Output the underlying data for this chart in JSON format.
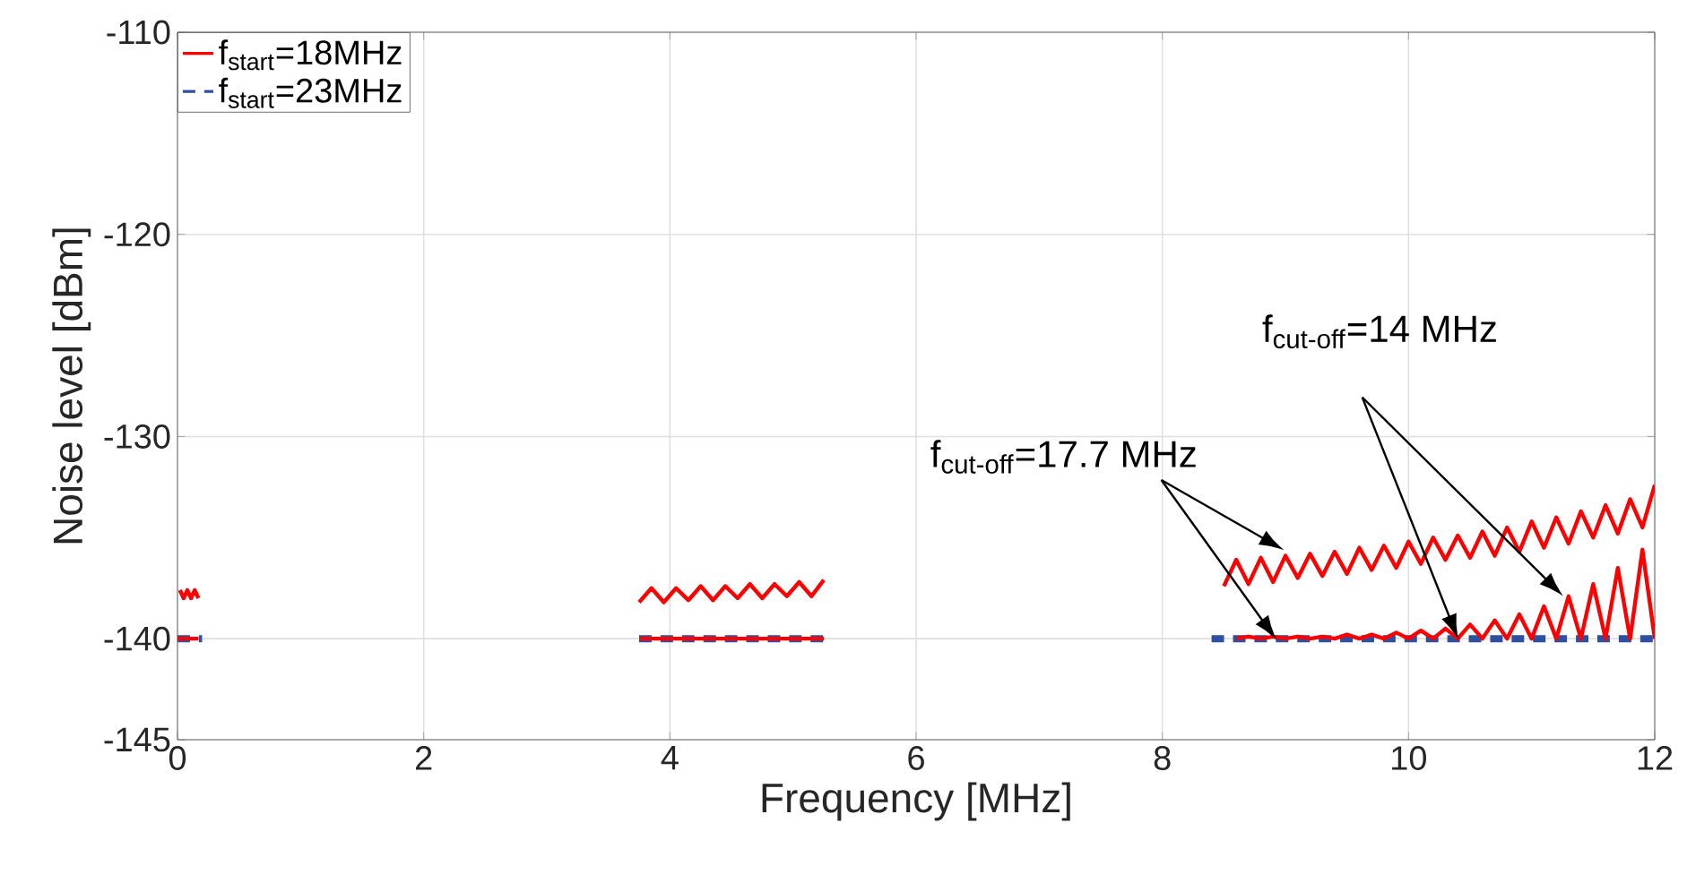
{
  "chart_data": {
    "type": "line",
    "xlabel": "Frequency [MHz]",
    "ylabel": "Noise level [dBm]",
    "xlim": [
      0,
      12
    ],
    "ylim": [
      -145,
      -110
    ],
    "xticks": [
      0,
      2,
      4,
      6,
      8,
      10,
      12
    ],
    "yticks": [
      -145,
      -140,
      -130,
      -120,
      -110
    ],
    "grid": true,
    "legend": "top left",
    "series": [
      {
        "name": "f$_{start}$=18MHz",
        "color": "#ff0000",
        "line_style": "solid",
        "x": [
          0.02,
          0.05,
          0.08,
          0.11,
          0.14,
          0.17,
          0.1,
          0,
          0.17,
          2,
          3.75,
          3.85,
          3.95,
          4.05,
          4.15,
          4.25,
          4.35,
          4.45,
          4.55,
          4.65,
          4.75,
          4.85,
          4.95,
          5.05,
          5.15,
          5.25,
          4.5,
          3.75,
          5.25,
          7,
          8.5,
          8.6,
          8.7,
          8.8,
          8.9,
          9.0,
          9.1,
          9.2,
          9.3,
          9.4,
          9.5,
          9.6,
          9.7,
          9.8,
          9.9,
          10.0,
          10.1,
          10.2,
          10.3,
          10.4,
          10.5,
          10.6,
          10.7,
          10.8,
          10.9,
          11.0,
          11.1,
          11.2,
          11.3,
          11.4,
          11.5,
          11.6,
          11.7,
          11.8,
          11.9,
          12.0,
          10,
          8.6,
          8.7,
          8.8,
          8.9,
          9.0,
          9.1,
          9.2,
          9.3,
          9.4,
          9.5,
          9.6,
          9.7,
          9.8,
          9.9,
          10.0,
          10.1,
          10.2,
          10.3,
          10.4,
          10.5,
          10.6,
          10.7,
          10.8,
          10.9,
          11.0,
          11.1,
          11.2,
          11.3,
          11.4,
          11.5,
          11.6,
          11.7,
          11.8,
          11.9,
          12.0
        ],
        "values": [
          -137.6,
          -138.0,
          -137.6,
          -138.0,
          -137.6,
          -138.0,
          null,
          -140,
          -140,
          null,
          -138.2,
          -137.5,
          -138.2,
          -137.5,
          -138.1,
          -137.4,
          -138.1,
          -137.4,
          -138.0,
          -137.3,
          -138.0,
          -137.3,
          -137.9,
          -137.2,
          -137.9,
          -137.1,
          null,
          -140,
          -140,
          null,
          -137.4,
          -136.1,
          -137.3,
          -136.0,
          -137.2,
          -135.9,
          -137.0,
          -135.8,
          -136.9,
          -135.7,
          -136.8,
          -135.5,
          -136.6,
          -135.4,
          -136.5,
          -135.2,
          -136.3,
          -135.0,
          -136.1,
          -134.9,
          -136.0,
          -134.7,
          -135.9,
          -134.5,
          -135.7,
          -134.2,
          -135.5,
          -134.0,
          -135.3,
          -133.7,
          -135.0,
          -133.4,
          -134.8,
          -133.1,
          -134.5,
          -132.4,
          null,
          -140,
          -139.9,
          -140,
          -139.9,
          -140,
          -139.9,
          -140,
          -139.9,
          -140,
          -139.8,
          -140,
          -139.8,
          -140,
          -139.7,
          -140,
          -139.6,
          -140,
          -139.5,
          -140,
          -139.3,
          -140,
          -139.1,
          -140,
          -138.8,
          -140,
          -138.4,
          -140,
          -137.9,
          -140,
          -137.3,
          -140,
          -136.5,
          -140,
          -135.6,
          -140
        ]
      },
      {
        "name": "f$_{start}$=23MHz",
        "color": "#2f4f9f",
        "line_style": "dashed",
        "x": [
          0,
          0.2,
          2,
          3.75,
          5.27,
          7,
          8.4,
          12
        ],
        "values": [
          -140,
          -140,
          null,
          -140,
          -140,
          null,
          -140,
          -140
        ]
      }
    ],
    "annotations": [
      "f$_{cut-off}$=17.7 MHz",
      "f$_{cut-off}$=14 MHz"
    ]
  }
}
